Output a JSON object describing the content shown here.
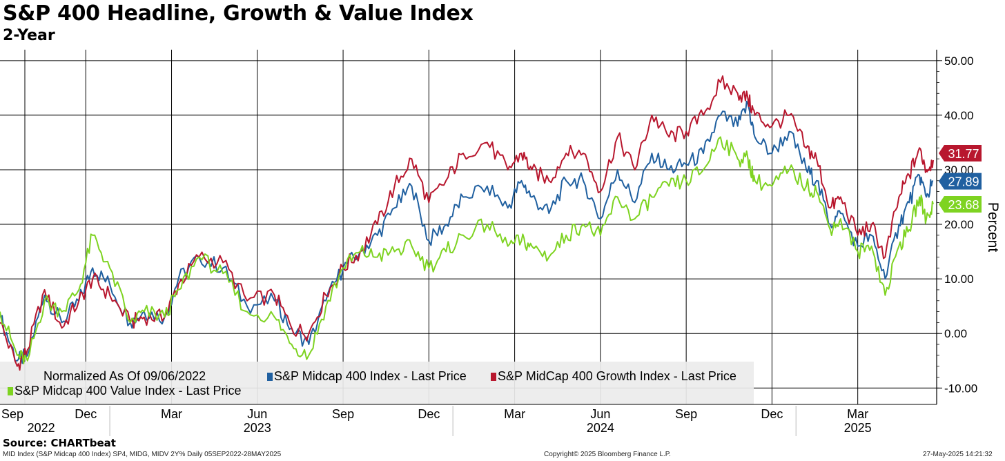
{
  "title": "S&P 400 Headline, Growth & Value Index",
  "subtitle": "2-Year",
  "source": "Source: CHARTbeat",
  "footer": {
    "left": "MID Index (S&P Midcap 400 Index) SP4, MIDG, MIDV 2Y%  Daily 05SEP2022-28MAY2025",
    "center": "Copyright© 2025 Bloomberg Finance L.P.",
    "right": "27-May-2025 14:21:32"
  },
  "colors": {
    "headline": "#2060a0",
    "growth": "#b8172e",
    "value": "#7ed321",
    "grid": "#000000"
  },
  "chart_data": {
    "type": "line",
    "ylabel": "Percent",
    "ylim": [
      -13,
      52
    ],
    "yticks": [
      50,
      40,
      30,
      20,
      10,
      0,
      -10
    ],
    "ytick_labels": [
      "50.00",
      "40.00",
      "30.00",
      "20.00",
      "10.00",
      "0.00",
      "-10.00"
    ],
    "legend": {
      "note": "Normalized As Of 09/06/2022",
      "placement": "bottom-left",
      "entries": [
        "S&P Midcap 400 Index - Last Price",
        "S&P MidCap 400 Growth Index - Last Price",
        "S&P Midcap 400 Value Index - Last Price"
      ]
    },
    "x_months": [
      "Sep",
      "Dec",
      "Mar",
      "Jun",
      "Sep",
      "Dec",
      "Mar",
      "Jun",
      "Sep",
      "Dec",
      "Mar"
    ],
    "x_month_pos": [
      0.0,
      0.25,
      0.5,
      0.75,
      1.0,
      1.25,
      1.5,
      1.75,
      2.0,
      2.25,
      2.5
    ],
    "x_years": [
      "2022",
      "2023",
      "2024",
      "2025"
    ],
    "x_year_pos": [
      0.12,
      0.75,
      1.75,
      2.5
    ],
    "x_year_dividers": [
      0.32,
      1.32,
      2.32
    ],
    "x_range": [
      0.0,
      2.73
    ],
    "x": [
      0.0,
      0.05,
      0.08,
      0.13,
      0.18,
      0.23,
      0.27,
      0.32,
      0.38,
      0.42,
      0.48,
      0.52,
      0.58,
      0.65,
      0.72,
      0.8,
      0.85,
      0.9,
      0.95,
      1.0,
      1.05,
      1.1,
      1.15,
      1.2,
      1.25,
      1.3,
      1.35,
      1.42,
      1.48,
      1.52,
      1.55,
      1.6,
      1.65,
      1.7,
      1.75,
      1.8,
      1.85,
      1.9,
      1.95,
      2.0,
      2.05,
      2.1,
      2.15,
      2.18,
      2.2,
      2.25,
      2.3,
      2.35,
      2.38,
      2.42,
      2.45,
      2.5,
      2.54,
      2.58,
      2.62,
      2.65,
      2.68,
      2.7,
      2.72
    ],
    "series": [
      {
        "name": "S&P Midcap 400 Index - Last Price",
        "color": "#2060a0",
        "last": 27.89,
        "last_label": "27.89",
        "values": [
          3,
          -5,
          -4,
          7,
          2,
          6,
          12,
          9,
          2,
          4,
          3,
          10,
          14,
          12,
          5,
          6,
          1,
          -2,
          6,
          12,
          15,
          18,
          23,
          27,
          17,
          20,
          25,
          27,
          23,
          28,
          25,
          22,
          28,
          28,
          21,
          30,
          24,
          33,
          30,
          31,
          33,
          40,
          38,
          42,
          36,
          33,
          37,
          30,
          28,
          20,
          22,
          16,
          18,
          10,
          20,
          24,
          29,
          25,
          27.89
        ]
      },
      {
        "name": "S&P MidCap 400 Growth Index - Last Price",
        "color": "#b8172e",
        "last": 31.77,
        "last_label": "31.77",
        "values": [
          2,
          -6,
          -3,
          8,
          1,
          6,
          10,
          7,
          2,
          3,
          3,
          9,
          14,
          13,
          6,
          7,
          1,
          0,
          7,
          12,
          15,
          20,
          27,
          32,
          24,
          28,
          33,
          35,
          30,
          33,
          30,
          28,
          33,
          33,
          26,
          36,
          30,
          40,
          36,
          37,
          40,
          46,
          44,
          43,
          40,
          38,
          40,
          34,
          32,
          23,
          25,
          18,
          20,
          14,
          25,
          29,
          34,
          30,
          31.77
        ]
      },
      {
        "name": "S&P Midcap 400 Value Index - Last Price",
        "color": "#7ed321",
        "last": 23.68,
        "last_label": "23.68",
        "values": [
          4,
          -4,
          -5,
          6,
          4,
          8,
          18,
          12,
          2,
          4,
          3,
          8,
          14,
          11,
          4,
          3,
          -2,
          -4,
          5,
          12,
          15,
          14,
          15,
          16,
          12,
          15,
          18,
          20,
          16,
          17,
          16,
          14,
          18,
          20,
          18,
          25,
          21,
          25,
          27,
          28,
          30,
          36,
          32,
          32,
          28,
          27,
          30,
          27,
          26,
          19,
          21,
          15,
          16,
          7,
          16,
          19,
          25,
          21,
          23.68
        ]
      }
    ]
  }
}
